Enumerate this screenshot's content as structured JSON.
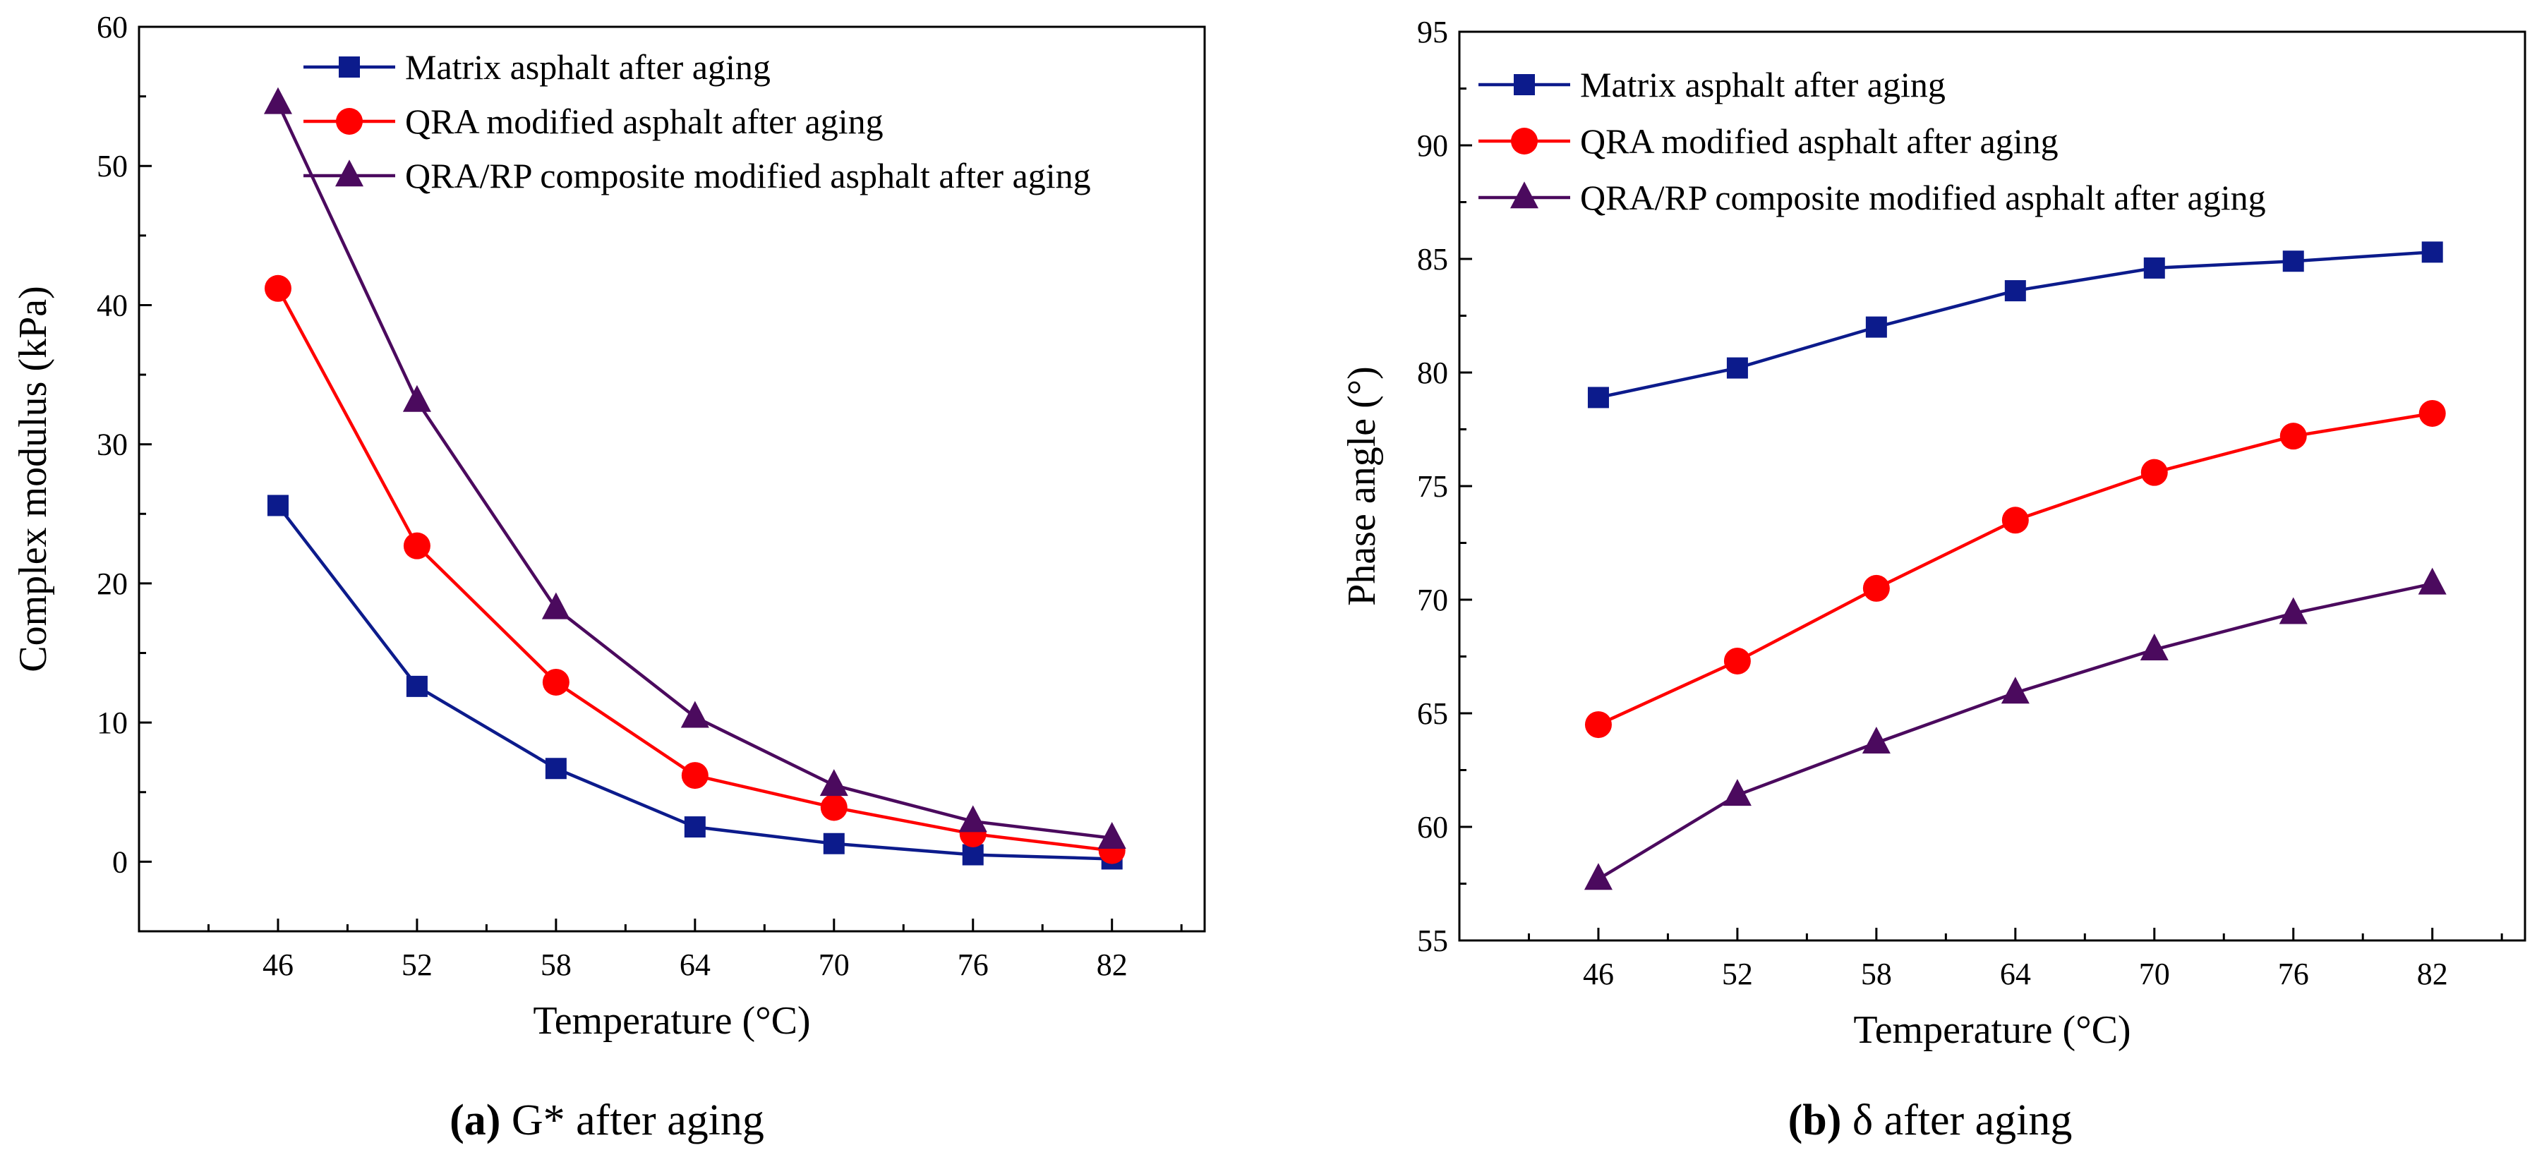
{
  "chart_data": [
    {
      "panel_id": "a",
      "type": "line",
      "categories": [
        "46",
        "52",
        "58",
        "64",
        "70",
        "76",
        "82"
      ],
      "x": [
        46,
        52,
        58,
        64,
        70,
        76,
        82
      ],
      "xlim": [
        40,
        86
      ],
      "ylim": [
        -5,
        60
      ],
      "yticks": [
        0,
        10,
        20,
        30,
        40,
        50,
        60
      ],
      "xlabel": "Temperature (°C)",
      "ylabel": "Complex modulus (kPa)",
      "caption_bold": "(a)",
      "caption_rest": " G* after aging",
      "legend_position": "top-right",
      "grid": false,
      "series": [
        {
          "name": "Matrix asphalt after aging",
          "color": "#0c1b8c",
          "marker": "square",
          "values": [
            25.6,
            12.6,
            6.7,
            2.5,
            1.3,
            0.5,
            0.2
          ]
        },
        {
          "name": "QRA modified asphalt after aging",
          "color": "#ff0000",
          "marker": "circle",
          "values": [
            41.2,
            22.7,
            12.9,
            6.2,
            3.9,
            2.0,
            0.8
          ]
        },
        {
          "name": "QRA/RP composite modified asphalt after aging",
          "color": "#4b0a5e",
          "marker": "triangle",
          "values": [
            54.5,
            33.1,
            18.2,
            10.4,
            5.5,
            2.9,
            1.7
          ]
        }
      ]
    },
    {
      "panel_id": "b",
      "type": "line",
      "categories": [
        "46",
        "52",
        "58",
        "64",
        "70",
        "76",
        "82"
      ],
      "x": [
        46,
        52,
        58,
        64,
        70,
        76,
        82
      ],
      "xlim": [
        40,
        86
      ],
      "ylim": [
        55,
        95
      ],
      "yticks": [
        55,
        60,
        65,
        70,
        75,
        80,
        85,
        90,
        95
      ],
      "xlabel": "Temperature (°C)",
      "ylabel": "Phase angle (°)",
      "caption_bold": "(b)",
      "caption_rest": " δ after aging",
      "legend_position": "top-left",
      "grid": false,
      "series": [
        {
          "name": "Matrix asphalt after aging",
          "color": "#0c1b8c",
          "marker": "square",
          "values": [
            78.9,
            80.2,
            82.0,
            83.6,
            84.6,
            84.9,
            85.3
          ]
        },
        {
          "name": "QRA modified asphalt after aging",
          "color": "#ff0000",
          "marker": "circle",
          "values": [
            64.5,
            67.3,
            70.5,
            73.5,
            75.6,
            77.2,
            78.2
          ]
        },
        {
          "name": "QRA/RP composite modified asphalt after aging",
          "color": "#4b0a5e",
          "marker": "triangle",
          "values": [
            57.7,
            61.4,
            63.7,
            65.9,
            67.8,
            69.4,
            70.7
          ]
        }
      ]
    }
  ]
}
